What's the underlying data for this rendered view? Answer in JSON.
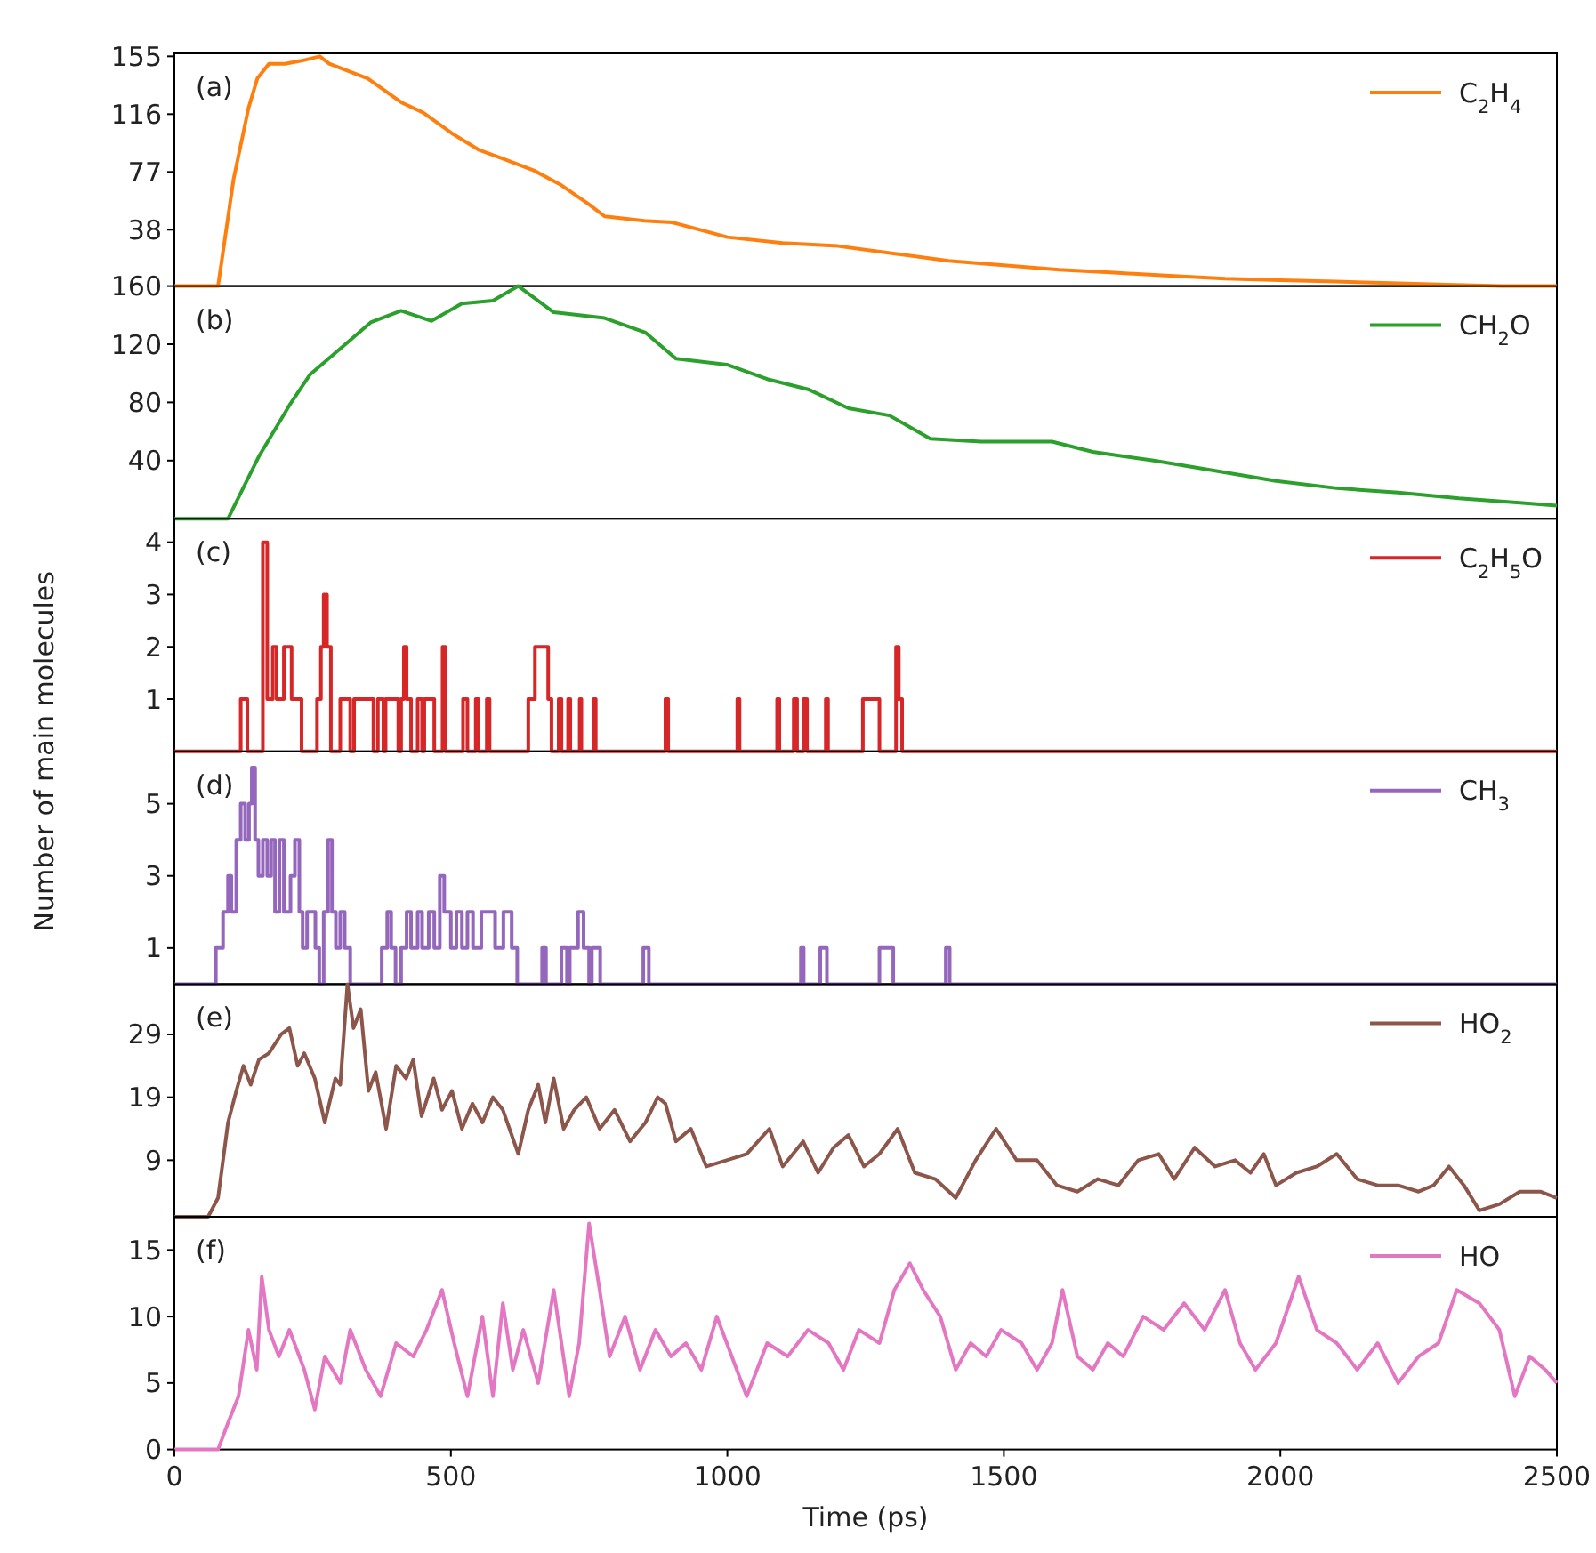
{
  "chart_data": [
    {
      "type": "line",
      "xlim": [
        0,
        2500
      ],
      "ylim": [
        0,
        157
      ],
      "yticks": [
        38,
        77,
        116,
        155
      ],
      "tick_labels": "y",
      "legend": "top right",
      "annotations": [
        "(a)"
      ],
      "x": [
        0,
        79,
        107,
        134,
        150,
        171,
        200,
        230,
        263,
        280,
        350,
        410,
        450,
        502,
        550,
        594,
        650,
        700,
        750,
        778,
        850,
        900,
        1000,
        1100,
        1200,
        1300,
        1400,
        1500,
        1600,
        1700,
        1800,
        1900,
        2000,
        2100,
        2200,
        2300,
        2400,
        2500
      ],
      "series": [
        {
          "name": "C$_{2}$H$_{4}$",
          "color": "#ff7f0e",
          "values": [
            0,
            0,
            72,
            120,
            140,
            150,
            150,
            152,
            155,
            150,
            140,
            124,
            117,
            103,
            92,
            86,
            78,
            68,
            55,
            47,
            44,
            43,
            33,
            29,
            27,
            22,
            17,
            14,
            11,
            9,
            7,
            5,
            4,
            3,
            2,
            1,
            0,
            0
          ]
        }
      ]
    },
    {
      "type": "line",
      "xlim": [
        0,
        2500
      ],
      "ylim": [
        0,
        160
      ],
      "yticks": [
        40,
        80,
        120,
        160
      ],
      "tick_labels": "y",
      "legend": "top right",
      "annotations": [
        "(b)"
      ],
      "x": [
        0,
        97,
        153,
        208,
        245,
        300,
        355,
        410,
        465,
        520,
        576,
        622,
        686,
        778,
        852,
        907,
        999,
        1072,
        1146,
        1219,
        1293,
        1367,
        1459,
        1587,
        1661,
        1771,
        1882,
        1992,
        2102,
        2213,
        2323,
        2433,
        2500
      ],
      "series": [
        {
          "name": "CH$_{2}$O",
          "color": "#2ca02c",
          "values": [
            0,
            0,
            43,
            78,
            99,
            117,
            135,
            143,
            136,
            148,
            150,
            160,
            142,
            138,
            128,
            110,
            106,
            96,
            89,
            76,
            71,
            55,
            53,
            53,
            46,
            40,
            33,
            26,
            21,
            18,
            14,
            11,
            9
          ]
        }
      ]
    },
    {
      "type": "step",
      "xlim": [
        0,
        2500
      ],
      "ylim": [
        0,
        4.45
      ],
      "yticks": [
        1,
        2,
        3,
        4
      ],
      "tick_labels": "y",
      "legend": "top right",
      "annotations": [
        "(c)"
      ],
      "ylabel": "Number of main molecules",
      "x": [
        0,
        120,
        132,
        160,
        168,
        178,
        185,
        198,
        212,
        230,
        258,
        265,
        270,
        276,
        283,
        300,
        318,
        325,
        360,
        368,
        378,
        382,
        405,
        410,
        415,
        420,
        428,
        440,
        448,
        452,
        470,
        485,
        490,
        522,
        530,
        545,
        550,
        565,
        570,
        640,
        652,
        676,
        682,
        695,
        700,
        712,
        716,
        733,
        736,
        758,
        762,
        888,
        893,
        1018,
        1022,
        1090,
        1094,
        1120,
        1126,
        1138,
        1144,
        1178,
        1182,
        1245,
        1275,
        1305,
        1310,
        1316,
        2500
      ],
      "series": [
        {
          "name": "C$_{2}$H$_{5}$O",
          "color": "#d62728",
          "values": [
            0,
            1,
            0,
            4,
            1,
            2,
            1,
            2,
            1,
            0,
            1,
            2,
            3,
            2,
            0,
            1,
            0,
            1,
            0,
            1,
            0,
            1,
            0,
            1,
            2,
            1,
            0,
            1,
            0,
            1,
            0,
            2,
            0,
            1,
            0,
            1,
            0,
            1,
            0,
            1,
            2,
            1,
            0,
            1,
            0,
            1,
            0,
            1,
            0,
            1,
            0,
            1,
            0,
            1,
            0,
            1,
            0,
            1,
            0,
            1,
            0,
            1,
            0,
            1,
            0,
            2,
            1,
            0,
            0
          ]
        }
      ]
    },
    {
      "type": "step",
      "xlim": [
        0,
        2500
      ],
      "ylim": [
        0,
        6.45
      ],
      "yticks": [
        1,
        3,
        5
      ],
      "tick_labels": "y",
      "legend": "top right",
      "annotations": [
        "(d)"
      ],
      "x": [
        0,
        75,
        88,
        97,
        103,
        112,
        120,
        128,
        135,
        140,
        146,
        152,
        160,
        168,
        175,
        182,
        190,
        198,
        210,
        218,
        226,
        232,
        240,
        255,
        262,
        270,
        278,
        285,
        292,
        300,
        308,
        318,
        375,
        385,
        392,
        400,
        410,
        420,
        428,
        440,
        448,
        460,
        470,
        480,
        488,
        500,
        510,
        520,
        530,
        540,
        555,
        580,
        595,
        610,
        620,
        665,
        672,
        700,
        710,
        715,
        730,
        740,
        750,
        755,
        770,
        848,
        858,
        1133,
        1138,
        1168,
        1180,
        1275,
        1300,
        1395,
        1402,
        2500
      ],
      "series": [
        {
          "name": "CH$_{3}$",
          "color": "#9467bd",
          "values": [
            0,
            1,
            2,
            3,
            2,
            4,
            5,
            4,
            5,
            6,
            4,
            3,
            4,
            3,
            4,
            2,
            4,
            2,
            3,
            4,
            2,
            1,
            2,
            1,
            0,
            2,
            4,
            2,
            1,
            2,
            1,
            0,
            1,
            2,
            1,
            0,
            1,
            2,
            1,
            2,
            1,
            2,
            1,
            3,
            2,
            1,
            2,
            1,
            2,
            1,
            2,
            1,
            2,
            1,
            0,
            1,
            0,
            1,
            0,
            1,
            2,
            1,
            0,
            1,
            0,
            1,
            0,
            1,
            0,
            1,
            0,
            1,
            0,
            1,
            0,
            0
          ]
        }
      ]
    },
    {
      "type": "line",
      "xlim": [
        0,
        2500
      ],
      "ylim": [
        0,
        37
      ],
      "yticks": [
        9,
        19,
        29
      ],
      "tick_labels": "y",
      "legend": "top right",
      "annotations": [
        "(e)"
      ],
      "x": [
        0,
        61,
        79,
        97,
        112,
        125,
        138,
        153,
        171,
        193,
        208,
        223,
        235,
        254,
        272,
        291,
        300,
        313,
        324,
        337,
        351,
        364,
        383,
        401,
        419,
        432,
        447,
        469,
        484,
        502,
        520,
        539,
        557,
        576,
        594,
        622,
        640,
        658,
        671,
        686,
        704,
        723,
        745,
        769,
        796,
        824,
        852,
        874,
        888,
        907,
        934,
        962,
        999,
        1035,
        1076,
        1100,
        1137,
        1164,
        1192,
        1219,
        1247,
        1275,
        1308,
        1339,
        1376,
        1413,
        1449,
        1486,
        1523,
        1560,
        1596,
        1633,
        1670,
        1707,
        1743,
        1780,
        1808,
        1845,
        1882,
        1918,
        1946,
        1970,
        1992,
        2029,
        2066,
        2102,
        2139,
        2176,
        2213,
        2250,
        2277,
        2305,
        2332,
        2360,
        2396,
        2433,
        2470,
        2500
      ],
      "series": [
        {
          "name": "HO$_{2}$",
          "color": "#8c564b",
          "values": [
            0,
            0,
            3,
            15,
            20,
            24,
            21,
            25,
            26,
            29,
            30,
            24,
            26,
            22,
            15,
            22,
            21,
            37,
            30,
            33,
            20,
            23,
            14,
            24,
            22,
            25,
            16,
            22,
            17,
            20,
            14,
            18,
            15,
            19,
            17,
            10,
            17,
            21,
            15,
            22,
            14,
            17,
            19,
            14,
            17,
            12,
            15,
            19,
            18,
            12,
            14,
            8,
            9,
            10,
            14,
            8,
            12,
            7,
            11,
            13,
            8,
            10,
            14,
            7,
            6,
            3,
            9,
            14,
            9,
            9,
            5,
            4,
            6,
            5,
            9,
            10,
            6,
            11,
            8,
            9,
            7,
            10,
            5,
            7,
            8,
            10,
            6,
            5,
            5,
            4,
            5,
            8,
            5,
            1,
            2,
            4,
            4,
            3
          ]
        }
      ]
    },
    {
      "type": "line",
      "xlim": [
        0,
        2500
      ],
      "ylim": [
        0,
        17.5
      ],
      "yticks": [
        0,
        5,
        10,
        15
      ],
      "xticks": [
        0,
        500,
        1000,
        1500,
        2000,
        2500
      ],
      "xlabel": "Time (ps)",
      "legend": "top right",
      "annotations": [
        "(f)"
      ],
      "x": [
        0,
        79,
        97,
        116,
        134,
        149,
        158,
        171,
        189,
        208,
        235,
        254,
        272,
        300,
        318,
        346,
        373,
        401,
        432,
        456,
        484,
        506,
        530,
        557,
        576,
        594,
        612,
        631,
        658,
        686,
        714,
        732,
        750,
        769,
        787,
        815,
        842,
        870,
        898,
        925,
        953,
        981,
        1008,
        1035,
        1072,
        1109,
        1146,
        1183,
        1210,
        1238,
        1275,
        1302,
        1330,
        1354,
        1385,
        1413,
        1440,
        1468,
        1495,
        1532,
        1560,
        1587,
        1606,
        1633,
        1661,
        1688,
        1716,
        1752,
        1789,
        1826,
        1863,
        1900,
        1927,
        1955,
        1992,
        2033,
        2066,
        2102,
        2139,
        2176,
        2213,
        2250,
        2286,
        2319,
        2360,
        2396,
        2424,
        2451,
        2479,
        2500
      ],
      "series": [
        {
          "name": "HO",
          "color": "#e377c2",
          "values": [
            0,
            0,
            2,
            4,
            9,
            6,
            13,
            9,
            7,
            9,
            6,
            3,
            7,
            5,
            9,
            6,
            4,
            8,
            7,
            9,
            12,
            8,
            4,
            10,
            4,
            11,
            6,
            9,
            5,
            12,
            4,
            8,
            17,
            12,
            7,
            10,
            6,
            9,
            7,
            8,
            6,
            10,
            7,
            4,
            8,
            7,
            9,
            8,
            6,
            9,
            8,
            12,
            14,
            12,
            10,
            6,
            8,
            7,
            9,
            8,
            6,
            8,
            12,
            7,
            6,
            8,
            7,
            10,
            9,
            11,
            9,
            12,
            8,
            6,
            8,
            13,
            9,
            8,
            6,
            8,
            5,
            7,
            8,
            12,
            11,
            9,
            4,
            7,
            6,
            5
          ]
        }
      ]
    }
  ]
}
